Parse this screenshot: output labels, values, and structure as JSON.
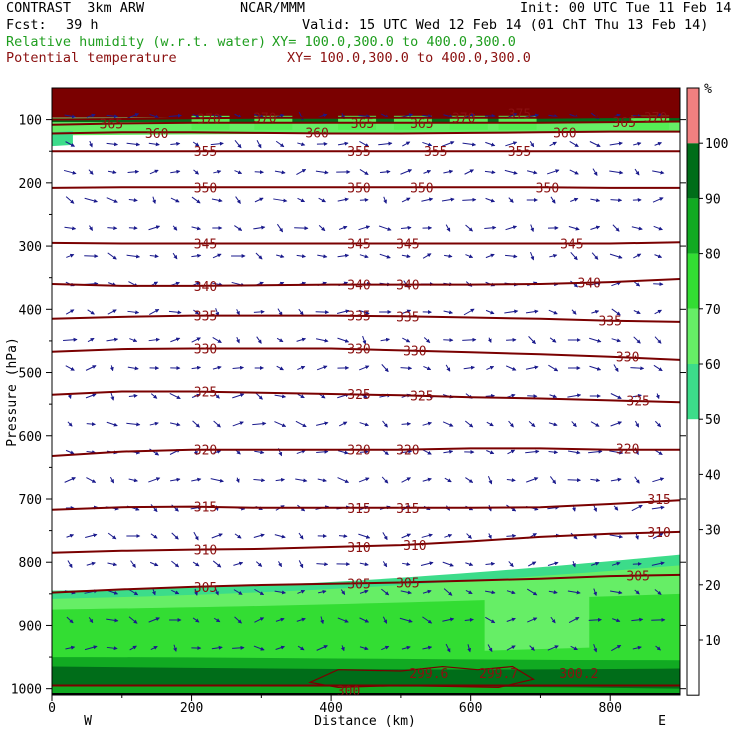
{
  "header": {
    "model": "CONTRAST  3km ARW",
    "center": "NCAR/MMM",
    "init": "Init: 00 UTC Tue 11 Feb 14",
    "fcst_label": "Fcst:",
    "fcst_value": "39 h",
    "valid": "Valid: 15 UTC Wed 12 Feb 14 (01 ChT Thu 13 Feb 14)",
    "field1": "Relative humidity (w.r.t. water)",
    "field1_xy": "XY= 100.0,300.0 to 400.0,300.0",
    "field2": "Potential temperature",
    "field2_xy": "XY= 100.0,300.0 to 400.0,300.0"
  },
  "chart_data": {
    "type": "contour",
    "xlabel": "Distance (km)",
    "ylabel": "Pressure (hPa)",
    "xlim": [
      0,
      900
    ],
    "ylim": [
      1010,
      50
    ],
    "x_ticks": [
      0,
      200,
      400,
      600,
      800
    ],
    "y_ticks": [
      100,
      200,
      300,
      400,
      500,
      600,
      700,
      800,
      900,
      1000
    ],
    "x_end_labels": [
      "W",
      "E"
    ],
    "colorbar": {
      "unit": "%",
      "levels": [
        10,
        20,
        30,
        40,
        50,
        60,
        70,
        80,
        90,
        100
      ],
      "colors": [
        "#ffffff",
        "#ffffff",
        "#ffffff",
        "#ffffff",
        "#ffffff",
        "#3cdc8a",
        "#66ee66",
        "#33dd33",
        "#11aa22",
        "#006d19",
        "#f08080"
      ]
    },
    "theta_contours": [
      {
        "label": "300",
        "p": [
          995,
          995,
          995,
          995,
          995,
          995,
          995,
          995,
          995,
          995
        ]
      },
      {
        "label": "305",
        "p": [
          848,
          843,
          839,
          836,
          834,
          832,
          829,
          826,
          822,
          820
        ]
      },
      {
        "label": "310",
        "p": [
          785,
          782,
          780,
          779,
          776,
          773,
          767,
          760,
          755,
          752
        ]
      },
      {
        "label": "315",
        "p": [
          717,
          713,
          712,
          714,
          714,
          714,
          714,
          713,
          708,
          702
        ]
      },
      {
        "label": "320",
        "p": [
          632,
          625,
          622,
          622,
          622,
          622,
          620,
          620,
          622,
          622
        ]
      },
      {
        "label": "325",
        "p": [
          535,
          530,
          530,
          532,
          534,
          536,
          539,
          541,
          544,
          547
        ]
      },
      {
        "label": "330",
        "p": [
          467,
          463,
          462,
          462,
          462,
          465,
          468,
          471,
          475,
          480
        ]
      },
      {
        "label": "335",
        "p": [
          415,
          412,
          410,
          410,
          410,
          411,
          413,
          415,
          418,
          420
        ]
      },
      {
        "label": "340",
        "p": [
          360,
          363,
          363,
          362,
          361,
          361,
          361,
          360,
          357,
          352
        ]
      },
      {
        "label": "345",
        "p": [
          295,
          296,
          296,
          296,
          296,
          296,
          296,
          296,
          296,
          294
        ]
      },
      {
        "label": "350",
        "p": [
          208,
          207,
          207,
          207,
          207,
          207,
          207,
          207,
          208,
          208
        ]
      },
      {
        "label": "355",
        "p": [
          150,
          150,
          150,
          150,
          150,
          150,
          150,
          150,
          150,
          150
        ]
      },
      {
        "label": "360",
        "p": [
          122,
          120,
          120,
          121,
          122,
          122,
          121,
          120,
          119,
          119
        ]
      },
      {
        "label": "365",
        "p": [
          108,
          106,
          105,
          105,
          105,
          105,
          105,
          105,
          104,
          103
        ]
      },
      {
        "label": "370",
        "p": [
          100,
          99,
          98,
          97,
          97,
          97,
          97,
          97,
          96,
          96
        ]
      }
    ],
    "theta_x": [
      0,
      100,
      200,
      300,
      400,
      500,
      600,
      700,
      800,
      900
    ],
    "theta_labels": [
      {
        "label": "365",
        "x": 85,
        "p": 106
      },
      {
        "label": "360",
        "x": 150,
        "p": 121
      },
      {
        "label": "370",
        "x": 225,
        "p": 98
      },
      {
        "label": "370",
        "x": 305,
        "p": 97
      },
      {
        "label": "360",
        "x": 380,
        "p": 120
      },
      {
        "label": "365",
        "x": 445,
        "p": 105
      },
      {
        "label": "365",
        "x": 530,
        "p": 105
      },
      {
        "label": "370",
        "x": 590,
        "p": 97
      },
      {
        "label": "375",
        "x": 670,
        "p": 90
      },
      {
        "label": "360",
        "x": 735,
        "p": 120
      },
      {
        "label": "365",
        "x": 820,
        "p": 104
      },
      {
        "label": "370",
        "x": 865,
        "p": 96
      },
      {
        "label": "355",
        "x": 220,
        "p": 150
      },
      {
        "label": "355",
        "x": 440,
        "p": 150
      },
      {
        "label": "355",
        "x": 550,
        "p": 150
      },
      {
        "label": "355",
        "x": 670,
        "p": 150
      },
      {
        "label": "350",
        "x": 220,
        "p": 207
      },
      {
        "label": "350",
        "x": 440,
        "p": 207
      },
      {
        "label": "350",
        "x": 530,
        "p": 207
      },
      {
        "label": "350",
        "x": 710,
        "p": 207
      },
      {
        "label": "345",
        "x": 220,
        "p": 296
      },
      {
        "label": "345",
        "x": 440,
        "p": 296
      },
      {
        "label": "345",
        "x": 510,
        "p": 296
      },
      {
        "label": "345",
        "x": 745,
        "p": 296
      },
      {
        "label": "340",
        "x": 220,
        "p": 363
      },
      {
        "label": "340",
        "x": 440,
        "p": 361
      },
      {
        "label": "340",
        "x": 510,
        "p": 361
      },
      {
        "label": "340",
        "x": 770,
        "p": 358
      },
      {
        "label": "335",
        "x": 220,
        "p": 410
      },
      {
        "label": "335",
        "x": 440,
        "p": 410
      },
      {
        "label": "335",
        "x": 510,
        "p": 411
      },
      {
        "label": "335",
        "x": 800,
        "p": 418
      },
      {
        "label": "330",
        "x": 220,
        "p": 462
      },
      {
        "label": "330",
        "x": 440,
        "p": 462
      },
      {
        "label": "330",
        "x": 520,
        "p": 465
      },
      {
        "label": "330",
        "x": 825,
        "p": 475
      },
      {
        "label": "325",
        "x": 220,
        "p": 530
      },
      {
        "label": "325",
        "x": 440,
        "p": 534
      },
      {
        "label": "325",
        "x": 530,
        "p": 536
      },
      {
        "label": "325",
        "x": 840,
        "p": 544
      },
      {
        "label": "320",
        "x": 220,
        "p": 622
      },
      {
        "label": "320",
        "x": 440,
        "p": 622
      },
      {
        "label": "320",
        "x": 510,
        "p": 622
      },
      {
        "label": "320",
        "x": 825,
        "p": 620
      },
      {
        "label": "315",
        "x": 220,
        "p": 712
      },
      {
        "label": "315",
        "x": 440,
        "p": 714
      },
      {
        "label": "315",
        "x": 510,
        "p": 714
      },
      {
        "label": "315",
        "x": 870,
        "p": 700
      },
      {
        "label": "310",
        "x": 220,
        "p": 780
      },
      {
        "label": "310",
        "x": 440,
        "p": 776
      },
      {
        "label": "310",
        "x": 520,
        "p": 773
      },
      {
        "label": "310",
        "x": 870,
        "p": 752
      },
      {
        "label": "305",
        "x": 220,
        "p": 839
      },
      {
        "label": "305",
        "x": 440,
        "p": 834
      },
      {
        "label": "305",
        "x": 510,
        "p": 832
      },
      {
        "label": "305",
        "x": 840,
        "p": 821
      },
      {
        "label": "300",
        "x": 425,
        "p": 1003
      }
    ],
    "extrema_labels": [
      {
        "label": "299.6",
        "x": 540,
        "p": 975
      },
      {
        "label": "299.7",
        "x": 640,
        "p": 975
      },
      {
        "label": "300.2",
        "x": 755,
        "p": 975
      }
    ]
  }
}
